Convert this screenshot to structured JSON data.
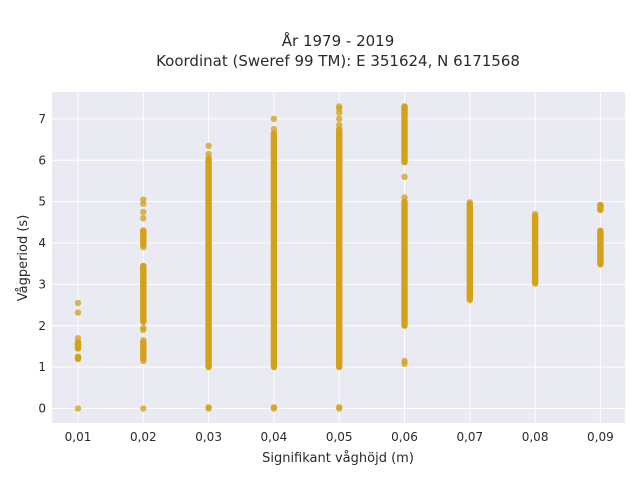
{
  "chart_data": {
    "type": "scatter",
    "title_lines": [
      "År 1979 - 2019",
      "Koordinat (Sweref 99 TM): E 351624, N 6171568"
    ],
    "xlabel": "Signifikant våghöjd (m)",
    "ylabel": "Vågperiod (s)",
    "x_categories": [
      "0,01",
      "0,02",
      "0,03",
      "0,04",
      "0,05",
      "0,06",
      "0,07",
      "0,08",
      "0,09"
    ],
    "y_ticks": [
      "0",
      "1",
      "2",
      "3",
      "4",
      "5",
      "6",
      "7"
    ],
    "ylim": [
      -0.35,
      7.65
    ],
    "grid": true,
    "marker_color": "#d4a21a",
    "plot_background": "#eaeaf2",
    "series": [
      {
        "points_by_category": [
          {
            "category": "0,01",
            "dense_ranges": [
              [
                1.2,
                1.25
              ],
              [
                1.45,
                1.6
              ]
            ],
            "points": [
              0,
              1.2,
              1.25,
              1.45,
              1.5,
              1.55,
              1.6,
              1.7,
              2.32,
              2.55
            ]
          },
          {
            "category": "0,02",
            "dense_ranges": [
              [
                1.2,
                1.6
              ],
              [
                2.1,
                3.45
              ],
              [
                3.95,
                4.3
              ]
            ],
            "points": [
              0,
              1.15,
              1.3,
              1.5,
              1.65,
              1.9,
              1.95,
              2.1,
              2.5,
              3.0,
              3.4,
              3.9,
              4.1,
              4.3,
              4.6,
              4.75,
              4.95,
              5.05
            ]
          },
          {
            "category": "0,03",
            "dense_ranges": [
              [
                1.0,
                6.05
              ]
            ],
            "points": [
              0,
              0.03,
              6.15,
              6.35
            ]
          },
          {
            "category": "0,04",
            "dense_ranges": [
              [
                1.0,
                6.65
              ]
            ],
            "points": [
              0,
              0.03,
              6.75,
              7.0
            ]
          },
          {
            "category": "0,05",
            "dense_ranges": [
              [
                1.0,
                6.75
              ]
            ],
            "points": [
              0,
              0.03,
              6.85,
              7.0,
              7.15,
              7.25,
              7.3
            ]
          },
          {
            "category": "0,06",
            "dense_ranges": [
              [
                2.0,
                5.0
              ],
              [
                5.95,
                7.3
              ]
            ],
            "points": [
              1.08,
              1.15,
              5.1,
              5.6,
              6.0,
              6.3,
              6.6,
              6.9,
              7.1,
              7.3
            ]
          },
          {
            "category": "0,07",
            "dense_ranges": [
              [
                2.65,
                4.95
              ]
            ],
            "points": [
              2.62,
              4.98
            ]
          },
          {
            "category": "0,08",
            "dense_ranges": [
              [
                3.05,
                4.65
              ]
            ],
            "points": [
              3.02,
              4.7
            ]
          },
          {
            "category": "0,09",
            "dense_ranges": [
              [
                3.5,
                4.3
              ],
              [
                4.8,
                4.92
              ]
            ],
            "points": [
              3.48,
              4.25,
              4.8,
              4.92
            ]
          }
        ]
      }
    ]
  }
}
